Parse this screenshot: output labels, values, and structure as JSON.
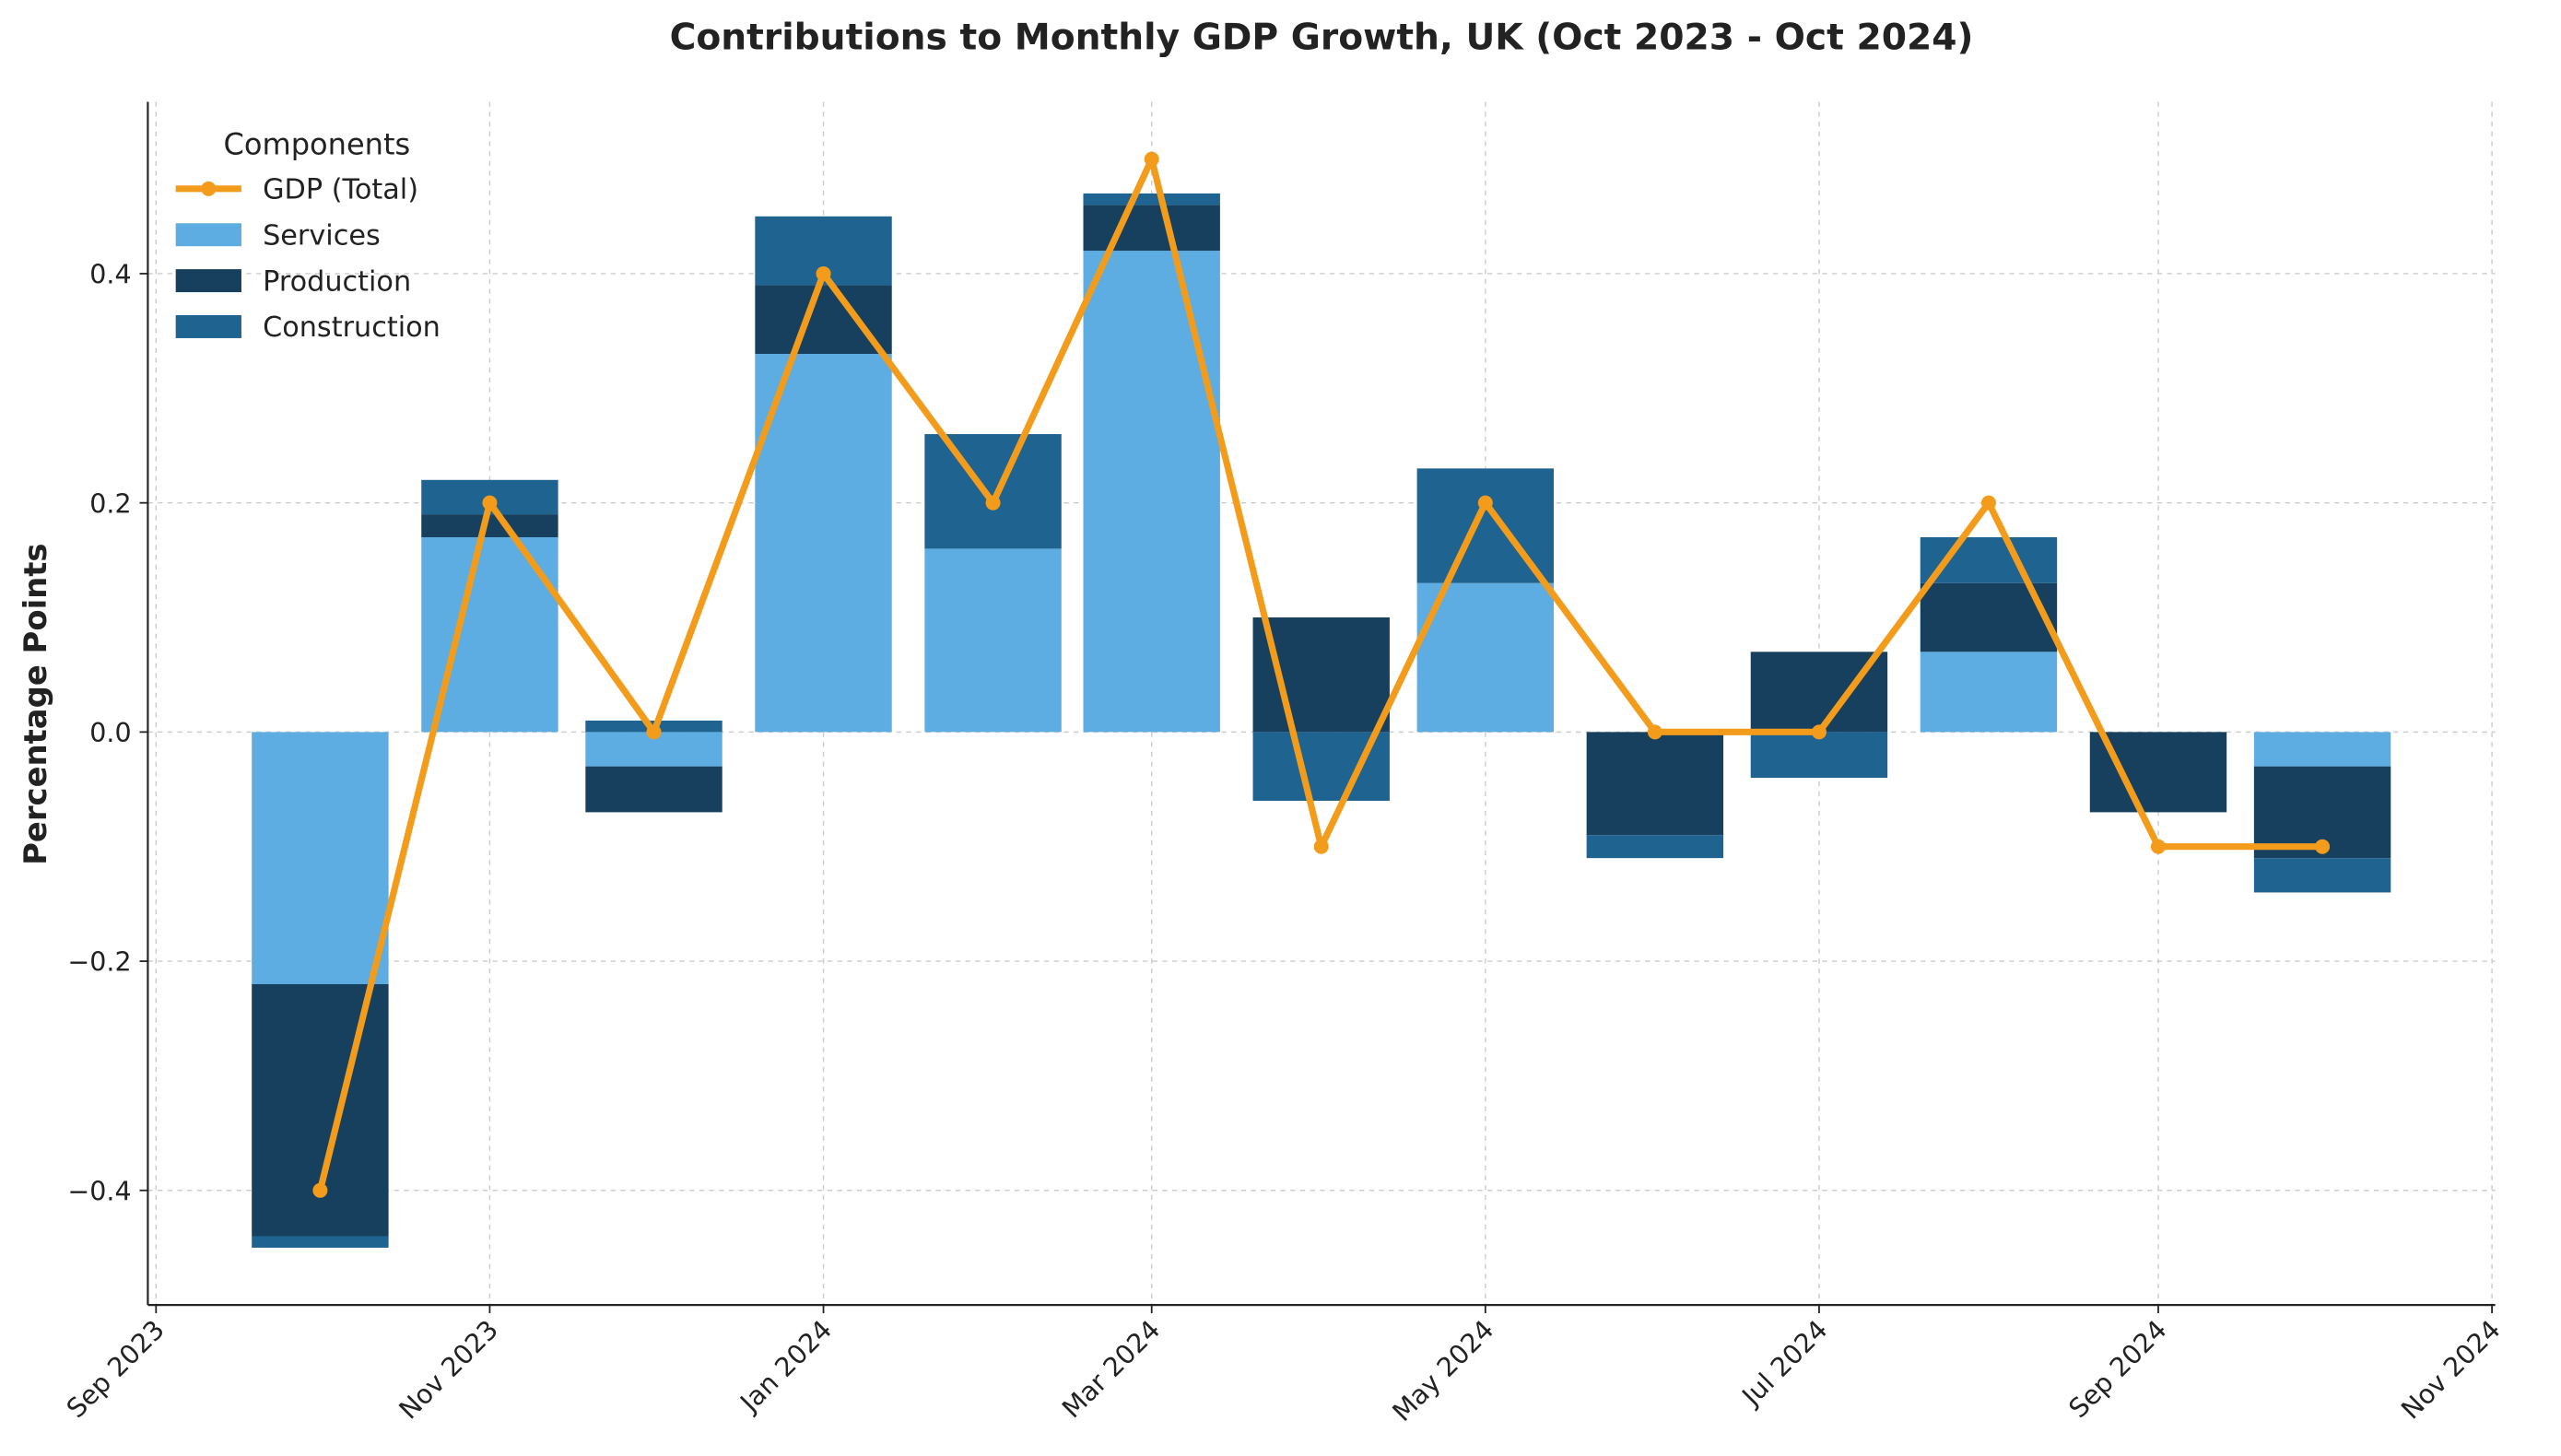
{
  "chart_data": {
    "type": "stacked_bar_line",
    "title": "Contributions to Monthly GDP Growth, UK (Oct 2023 - Oct 2024)",
    "ylabel": "Percentage Points",
    "legend_title": "Components",
    "legend": "upper left",
    "grid": true,
    "x": [
      "2023-10",
      "2023-11",
      "2023-12",
      "2024-01",
      "2024-02",
      "2024-03",
      "2024-04",
      "2024-05",
      "2024-06",
      "2024-07",
      "2024-08",
      "2024-09",
      "2024-10"
    ],
    "xlim": [
      "2023-09",
      "2024-11"
    ],
    "xticks": [
      {
        "value": "2023-09",
        "label": "Sep 2023"
      },
      {
        "value": "2023-11",
        "label": "Nov 2023"
      },
      {
        "value": "2024-01",
        "label": "Jan 2024"
      },
      {
        "value": "2024-03",
        "label": "Mar 2024"
      },
      {
        "value": "2024-05",
        "label": "May 2024"
      },
      {
        "value": "2024-07",
        "label": "Jul 2024"
      },
      {
        "value": "2024-09",
        "label": "Sep 2024"
      },
      {
        "value": "2024-11",
        "label": "Nov 2024"
      }
    ],
    "ylim": [
      -0.5,
      0.55
    ],
    "yticks": [
      {
        "value": -0.4,
        "label": "−0.4"
      },
      {
        "value": -0.2,
        "label": "−0.2"
      },
      {
        "value": 0,
        "label": "0.0"
      },
      0.2,
      0.4
    ],
    "line": {
      "name": "GDP (Total)",
      "color": "#f39c1c",
      "values": [
        -0.4,
        0.2,
        0,
        0.4,
        0.2,
        0.5,
        -0.1,
        0.2,
        0,
        0,
        0.2,
        -0.1,
        -0.1
      ]
    },
    "series": [
      {
        "name": "Services",
        "color": "#5dade2",
        "values": [
          -0.22,
          0.17,
          -0.03,
          0.33,
          0.16,
          0.42,
          0,
          0.13,
          0,
          0,
          0.07,
          0,
          -0.03
        ]
      },
      {
        "name": "Production",
        "color": "#17405e",
        "values": [
          -0.22,
          0.02,
          -0.04,
          0.06,
          0,
          0.04,
          0.1,
          0,
          -0.09,
          0.07,
          0.06,
          -0.07,
          -0.08
        ]
      },
      {
        "name": "Construction",
        "color": "#1f6391",
        "values": [
          -0.01,
          0.03,
          0.01,
          0.06,
          0.1,
          0.01,
          -0.06,
          0.1,
          -0.02,
          -0.04,
          0.04,
          0,
          -0.03
        ]
      }
    ]
  }
}
